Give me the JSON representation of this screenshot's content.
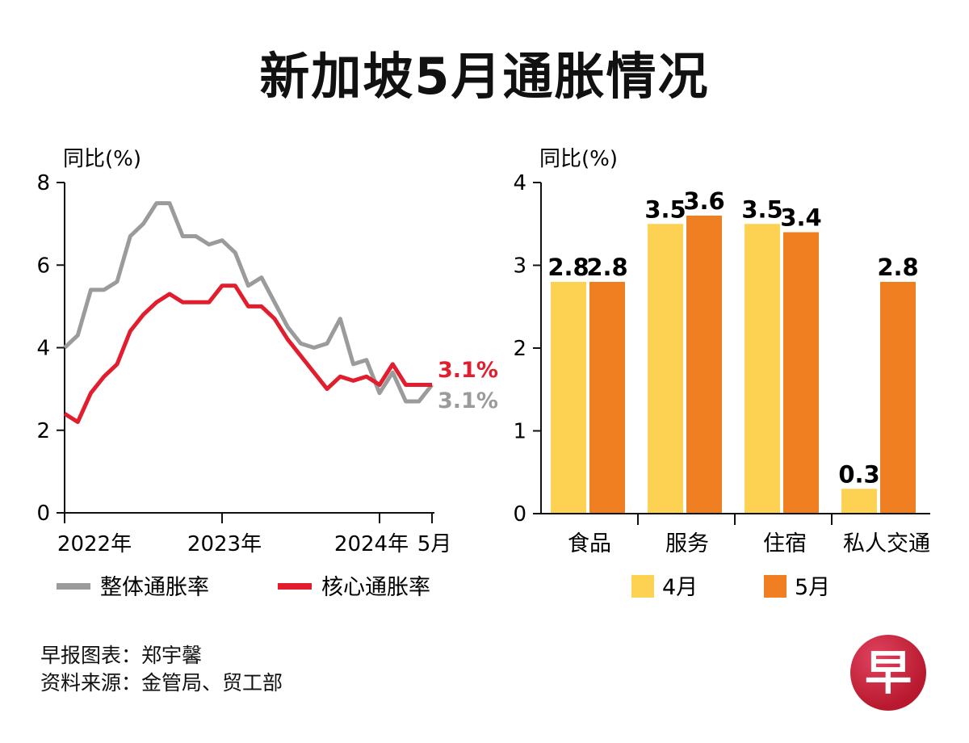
{
  "title": "新加坡5月通胀情况",
  "footer": {
    "credit": "早报图表：郑宇馨",
    "source": "资料来源：金管局、贸工部"
  },
  "logo_text": "早",
  "colors": {
    "headline": "#9b9b9b",
    "core": "#e11d2e",
    "april": "#fdd253",
    "may": "#f07f22",
    "axis": "#111111"
  },
  "chart_data": [
    {
      "type": "line",
      "ylabel": "同比(%)",
      "ylim": [
        0,
        8
      ],
      "yticks": [
        "0",
        "2",
        "4",
        "6",
        "8"
      ],
      "x_tick_labels": [
        "2022年",
        "2023年",
        "2024年",
        "5月"
      ],
      "series": [
        {
          "name": "整体通胀率",
          "end_label": "3.1%",
          "values": [
            4.0,
            4.3,
            5.4,
            5.4,
            5.6,
            6.7,
            7.0,
            7.5,
            7.5,
            6.7,
            6.7,
            6.5,
            6.6,
            6.3,
            5.5,
            5.7,
            5.1,
            4.5,
            4.1,
            4.0,
            4.1,
            4.7,
            3.6,
            3.7,
            2.9,
            3.4,
            2.7,
            2.7,
            3.1
          ]
        },
        {
          "name": "核心通胀率",
          "end_label": "3.1%",
          "values": [
            2.4,
            2.2,
            2.9,
            3.3,
            3.6,
            4.4,
            4.8,
            5.1,
            5.3,
            5.1,
            5.1,
            5.1,
            5.5,
            5.5,
            5.0,
            5.0,
            4.7,
            4.2,
            3.8,
            3.4,
            3.0,
            3.3,
            3.2,
            3.3,
            3.1,
            3.6,
            3.1,
            3.1,
            3.1
          ]
        }
      ]
    },
    {
      "type": "bar",
      "ylabel": "同比(%)",
      "ylim": [
        0,
        4
      ],
      "yticks": [
        "0",
        "1",
        "2",
        "3",
        "4"
      ],
      "categories": [
        "食品",
        "服务",
        "住宿",
        "私人交通"
      ],
      "series": [
        {
          "name": "4月",
          "values": [
            2.8,
            3.5,
            3.5,
            0.3
          ],
          "labels": [
            "2.8",
            "3.5",
            "3.5",
            "0.3"
          ]
        },
        {
          "name": "5月",
          "values": [
            2.8,
            3.6,
            3.4,
            2.8
          ],
          "labels": [
            "2.8",
            "3.6",
            "3.4",
            "2.8"
          ]
        }
      ]
    }
  ]
}
